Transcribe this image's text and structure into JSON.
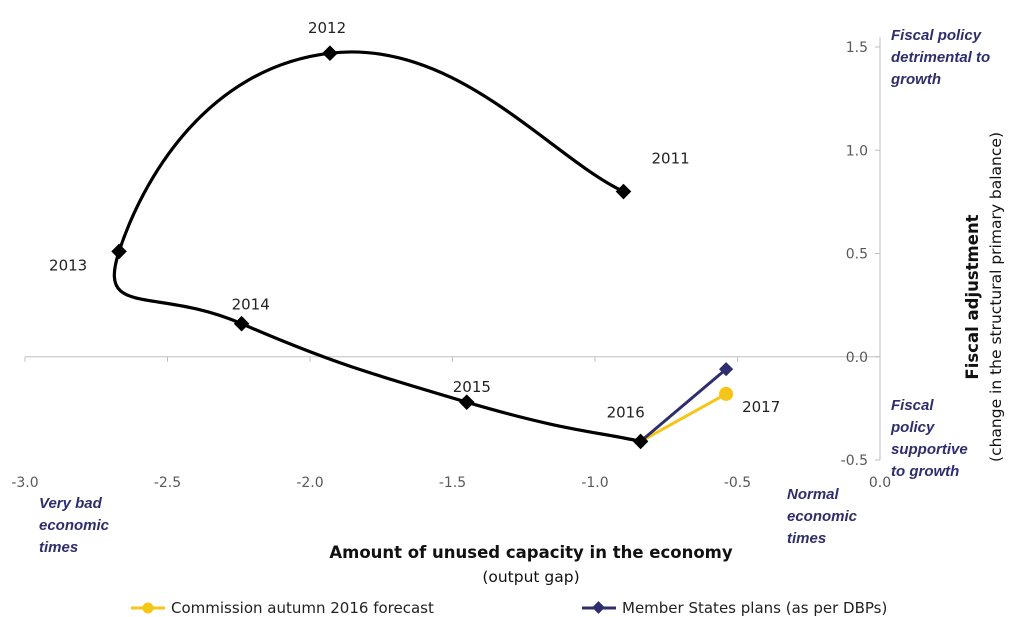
{
  "chart_data": {
    "type": "scatter",
    "title": "",
    "xlabel": "Amount of unused capacity in the economy",
    "xlabel_sub": "(output gap)",
    "ylabel": "Fiscal adjustment",
    "ylabel_sub": "(change in the structural primary balance)",
    "xlim": [
      -3.0,
      0.0
    ],
    "ylim": [
      -0.5,
      1.5
    ],
    "x_ticks": [
      "-3.0",
      "-2.5",
      "-2.0",
      "-1.5",
      "-1.0",
      "-0.5",
      "0.0"
    ],
    "y_ticks": [
      "-0.5",
      "0.0",
      "0.5",
      "1.0",
      "1.5"
    ],
    "x_tick_values": [
      -3.0,
      -2.5,
      -2.0,
      -1.5,
      -1.0,
      -0.5,
      0.0
    ],
    "y_tick_values": [
      -0.5,
      0.0,
      0.5,
      1.0,
      1.5
    ],
    "grid": false,
    "legend_position": "bottom",
    "path": {
      "name": "",
      "color": "#000000",
      "smooth": true,
      "points": [
        {
          "label": "2011",
          "x": -0.9,
          "y": 0.8
        },
        {
          "label": "2012",
          "x": -1.93,
          "y": 1.47
        },
        {
          "label": "2013",
          "x": -2.67,
          "y": 0.51
        },
        {
          "label": "2014",
          "x": -2.24,
          "y": 0.16
        },
        {
          "label": "2015",
          "x": -1.45,
          "y": -0.22
        },
        {
          "label": "2016",
          "x": -0.84,
          "y": -0.41
        }
      ]
    },
    "series": [
      {
        "name": "Commission autumn 2016 forecast",
        "color": "#f5c518",
        "points": [
          {
            "x": -0.84,
            "y": -0.41
          },
          {
            "x": -0.54,
            "y": -0.18
          }
        ]
      },
      {
        "name": "Member States plans (as per DBPs)",
        "color": "#2e2e6e",
        "points": [
          {
            "x": -0.84,
            "y": -0.41
          },
          {
            "x": -0.54,
            "y": -0.06
          }
        ]
      }
    ],
    "end_label": "2017",
    "annotations": {
      "top_right": [
        "Fiscal policy",
        "detrimental to",
        "growth"
      ],
      "bottom_right": [
        "Fiscal",
        "policy",
        "supportive",
        "to growth"
      ],
      "bottom_left": [
        "Very bad",
        "economic",
        "times"
      ],
      "bottom_normal": [
        "Normal",
        "economic",
        "times"
      ]
    }
  }
}
